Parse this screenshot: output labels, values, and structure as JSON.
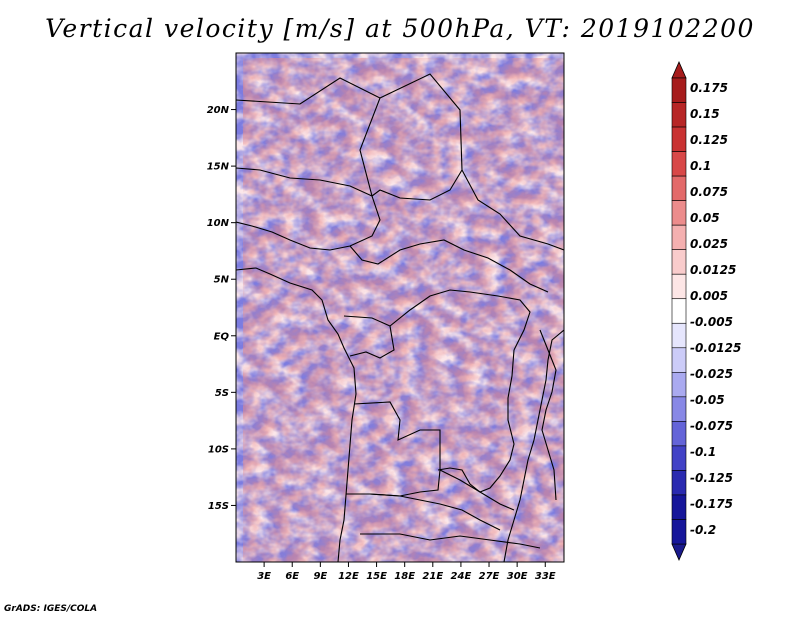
{
  "title": "Vertical velocity [m/s] at 500hPa, VT: 2019102200",
  "credit": "GrADS: IGES/COLA",
  "map": {
    "lat_range": [
      -20,
      25
    ],
    "lon_range": [
      0,
      35
    ],
    "lat_ticks": [
      {
        "value": 20,
        "label": "20N"
      },
      {
        "value": 15,
        "label": "15N"
      },
      {
        "value": 10,
        "label": "10N"
      },
      {
        "value": 5,
        "label": "5N"
      },
      {
        "value": 0,
        "label": "EQ"
      },
      {
        "value": -5,
        "label": "5S"
      },
      {
        "value": -10,
        "label": "10S"
      },
      {
        "value": -15,
        "label": "15S"
      }
    ],
    "lon_ticks": [
      {
        "value": 3,
        "label": "3E"
      },
      {
        "value": 6,
        "label": "6E"
      },
      {
        "value": 9,
        "label": "9E"
      },
      {
        "value": 12,
        "label": "12E"
      },
      {
        "value": 15,
        "label": "15E"
      },
      {
        "value": 18,
        "label": "18E"
      },
      {
        "value": 21,
        "label": "21E"
      },
      {
        "value": 24,
        "label": "24E"
      },
      {
        "value": 27,
        "label": "27E"
      },
      {
        "value": 30,
        "label": "30E"
      },
      {
        "value": 33,
        "label": "33E"
      }
    ]
  },
  "colorbar": {
    "levels": [
      {
        "label": "0.175",
        "color": "#a61c1c"
      },
      {
        "label": "0.15",
        "color": "#b72626"
      },
      {
        "label": "0.125",
        "color": "#c93232"
      },
      {
        "label": "0.1",
        "color": "#d84848"
      },
      {
        "label": "0.075",
        "color": "#e36a6a"
      },
      {
        "label": "0.05",
        "color": "#ec8c8c"
      },
      {
        "label": "0.025",
        "color": "#f4b0b0"
      },
      {
        "label": "0.0125",
        "color": "#f9cccc"
      },
      {
        "label": "0.005",
        "color": "#fde6e6"
      },
      {
        "label": "-0.005",
        "color": "#ffffff"
      },
      {
        "label": "-0.0125",
        "color": "#e6e6fd"
      },
      {
        "label": "-0.025",
        "color": "#ccccf8"
      },
      {
        "label": "-0.05",
        "color": "#aaaaf0"
      },
      {
        "label": "-0.075",
        "color": "#8888e6"
      },
      {
        "label": "-0.1",
        "color": "#6464d8"
      },
      {
        "label": "-0.125",
        "color": "#4242c6"
      },
      {
        "label": "-0.175",
        "color": "#2a2ab0"
      },
      {
        "label": "-0.2",
        "color": "#16169a"
      }
    ],
    "top_color": "#a61c1c",
    "bottom_color": "#1a1a8c"
  }
}
